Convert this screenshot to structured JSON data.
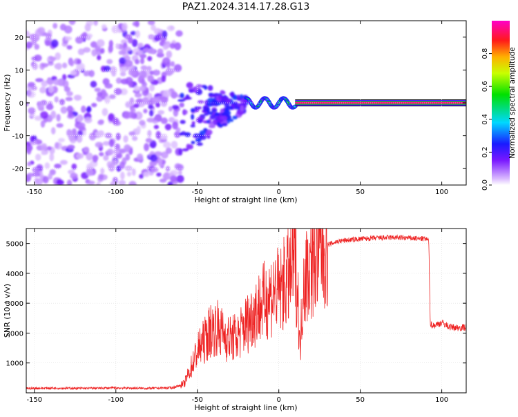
{
  "figure_title": "PAZ1.2024.314.17.28.G13",
  "colors": {
    "background": "#ffffff",
    "axis": "#000000",
    "snr_line": "#ee2222",
    "grid": "#ffffff"
  },
  "chart_data": [
    {
      "type": "heatmap",
      "title": "PAZ1.2024.314.17.28.G13",
      "xlabel": "Height of straight line (km)",
      "ylabel": "Frequency (Hz)",
      "xlim": [
        -155,
        115
      ],
      "ylim": [
        -25,
        25
      ],
      "xticks": [
        -150,
        -100,
        -50,
        0,
        50,
        100
      ],
      "yticks": [
        -20,
        -10,
        0,
        10,
        20
      ],
      "grid": true,
      "colorbar": {
        "label": "Normalized spectral amplitude",
        "range": [
          0,
          1
        ],
        "ticks": [
          0.0,
          0.2,
          0.4,
          0.6,
          0.8
        ],
        "colormap": "rainbow: white-violet-blue-cyan-green-yellow-orange-red-magenta"
      },
      "features": [
        {
          "description": "diffuse weak scattered energy",
          "x_range": [
            -155,
            -60
          ],
          "freq_range": [
            -25,
            25
          ],
          "amplitude": 0.1
        },
        {
          "description": "narrowing band",
          "x_range": [
            -60,
            -20
          ],
          "freq_range": [
            -12,
            5
          ],
          "amplitude": 0.2
        },
        {
          "description": "oscillating band near 0 Hz",
          "x_range": [
            -20,
            10
          ],
          "freq_range": [
            -3,
            3
          ],
          "amplitude": 0.55
        },
        {
          "description": "strong carrier at 0 Hz",
          "x_range": [
            10,
            115
          ],
          "freq_range": [
            -0.5,
            0.5
          ],
          "amplitude": 0.95
        }
      ]
    },
    {
      "type": "line",
      "xlabel": "Height of straight line (km)",
      "ylabel": "SNR (10 * v/v)",
      "xlim": [
        -155,
        115
      ],
      "ylim": [
        0,
        5500
      ],
      "xticks": [
        -150,
        -100,
        -50,
        0,
        50,
        100
      ],
      "yticks": [
        1000,
        2000,
        3000,
        4000,
        5000
      ],
      "grid": true,
      "x": [
        -155,
        -140,
        -120,
        -100,
        -80,
        -65,
        -58,
        -55,
        -50,
        -45,
        -42,
        -38,
        -35,
        -30,
        -25,
        -20,
        -15,
        -10,
        -5,
        -2,
        0,
        3,
        6,
        8,
        10,
        12,
        13,
        15,
        20,
        25,
        30,
        35,
        40,
        50,
        60,
        70,
        80,
        90,
        92,
        93,
        95,
        100,
        105,
        110,
        115
      ],
      "y": [
        150,
        160,
        150,
        165,
        150,
        170,
        300,
        700,
        1400,
        1800,
        2100,
        2200,
        2000,
        1800,
        1900,
        2300,
        2700,
        3000,
        3300,
        3450,
        3350,
        3600,
        3850,
        4100,
        4500,
        3000,
        1300,
        3800,
        4300,
        4700,
        4950,
        5050,
        5100,
        5150,
        5180,
        5200,
        5180,
        5150,
        5100,
        2300,
        2250,
        2350,
        2200,
        2180,
        2200
      ]
    }
  ]
}
